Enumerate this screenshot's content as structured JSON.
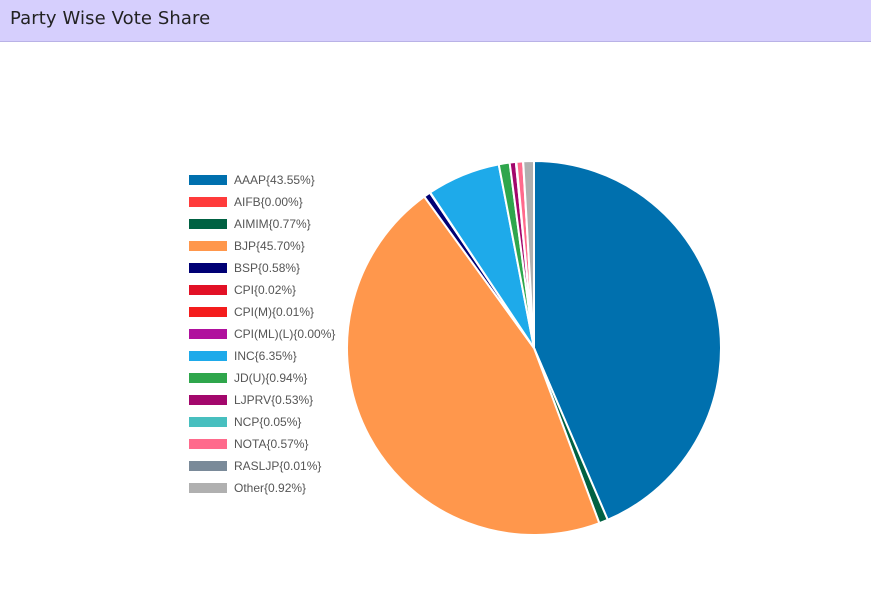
{
  "header": {
    "title": "Party Wise Vote Share"
  },
  "chart_data": {
    "type": "pie",
    "title": "Party Wise Vote Share",
    "legend_position": "left",
    "series": [
      {
        "name": "AAAP",
        "value": 43.55,
        "label": "AAAP{43.55%}",
        "color": "#0070ae"
      },
      {
        "name": "AIFB",
        "value": 0.0,
        "label": "AIFB{0.00%}",
        "color": "#ff3b3b"
      },
      {
        "name": "AIMIM",
        "value": 0.77,
        "label": "AIMIM{0.77%}",
        "color": "#006142"
      },
      {
        "name": "BJP",
        "value": 45.7,
        "label": "BJP{45.70%}",
        "color": "#ff974c"
      },
      {
        "name": "BSP",
        "value": 0.58,
        "label": "BSP{0.58%}",
        "color": "#000074"
      },
      {
        "name": "CPI",
        "value": 0.02,
        "label": "CPI{0.02%}",
        "color": "#e21126"
      },
      {
        "name": "CPI(M)",
        "value": 0.01,
        "label": "CPI(M){0.01%}",
        "color": "#f41c1c"
      },
      {
        "name": "CPI(ML)(L)",
        "value": 0.0,
        "label": "CPI(ML)(L){0.00%}",
        "color": "#b0109d"
      },
      {
        "name": "INC",
        "value": 6.35,
        "label": "INC{6.35%}",
        "color": "#1eaaea"
      },
      {
        "name": "JD(U)",
        "value": 0.94,
        "label": "JD(U){0.94%}",
        "color": "#2fa64c"
      },
      {
        "name": "LJPRV",
        "value": 0.53,
        "label": "LJPRV{0.53%}",
        "color": "#a3076c"
      },
      {
        "name": "NCP",
        "value": 0.05,
        "label": "NCP{0.05%}",
        "color": "#47bfbf"
      },
      {
        "name": "NOTA",
        "value": 0.57,
        "label": "NOTA{0.57%}",
        "color": "#ff6a8c"
      },
      {
        "name": "RASLJP",
        "value": 0.01,
        "label": "RASLJP{0.01%}",
        "color": "#7a8a99"
      },
      {
        "name": "Other",
        "value": 0.92,
        "label": "Other{0.92%}",
        "color": "#b0b0b0"
      }
    ]
  }
}
